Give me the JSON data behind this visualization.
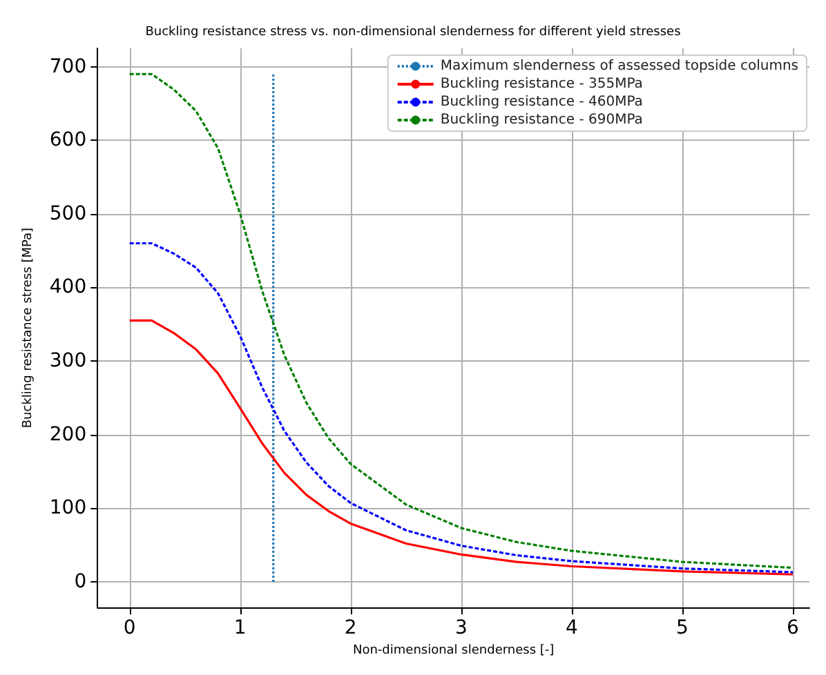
{
  "chart_data": {
    "type": "line",
    "title": "Buckling resistance stress vs. non-dimensional slenderness for different yield stresses",
    "xlabel": "Non-dimensional slenderness [-]",
    "ylabel": "Buckling resistance stress [MPa]",
    "x": [
      0,
      0.2,
      0.4,
      0.6,
      0.8,
      1,
      1.2,
      1.4,
      1.6,
      1.8,
      2,
      2.5,
      3,
      3.5,
      4,
      5,
      6
    ],
    "series": [
      {
        "name": "Maximum slenderness of assessed topside columns",
        "color": "#1f77b4",
        "line_style": "dotted",
        "x": [
          1.3,
          1.3
        ],
        "values": [
          0,
          690
        ]
      },
      {
        "name": "Buckling resistance - 355MPa",
        "color": "#ff0000",
        "line_style": "solid",
        "values": [
          355,
          355,
          338,
          316,
          283,
          236,
          188,
          148,
          118,
          96,
          79,
          52,
          37,
          27,
          21,
          14,
          10
        ]
      },
      {
        "name": "Buckling resistance - 460MPa",
        "color": "#0000ff",
        "line_style": "dashed",
        "values": [
          460,
          460,
          446,
          427,
          392,
          334,
          264,
          205,
          162,
          130,
          107,
          70,
          49,
          36,
          28,
          18,
          13
        ]
      },
      {
        "name": "Buckling resistance - 690MPa",
        "color": "#008000",
        "line_style": "dashed",
        "values": [
          690,
          690,
          669,
          640,
          589,
          500,
          395,
          308,
          243,
          195,
          160,
          105,
          73,
          54,
          42,
          27,
          19
        ]
      }
    ],
    "xlim": [
      -0.29,
      6.15
    ],
    "xticks": [
      0,
      1,
      2,
      3,
      4,
      5,
      6
    ],
    "ylim": [
      -35,
      725
    ],
    "yticks": [
      0,
      100,
      200,
      300,
      400,
      500,
      600,
      700
    ],
    "grid": true,
    "legend": "top right",
    "marker": "none"
  }
}
